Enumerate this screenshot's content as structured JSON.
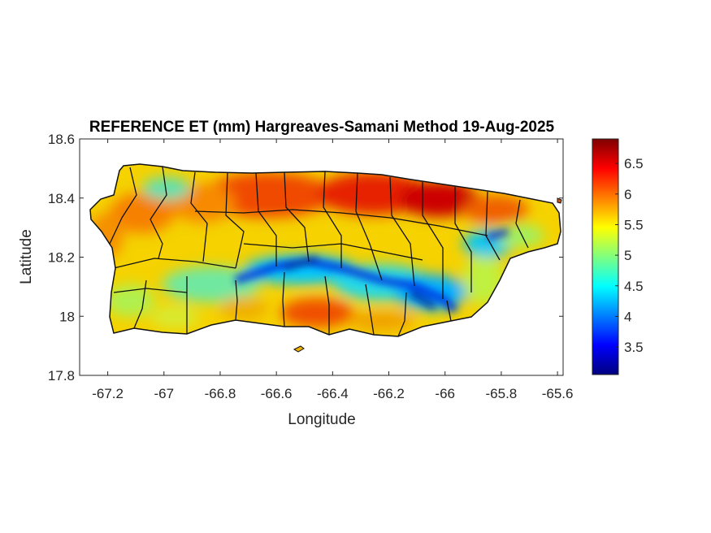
{
  "chart_data": {
    "type": "heatmap",
    "title": "REFERENCE ET (mm) Hargreaves-Samani Method  19-Aug-2025",
    "xlabel": "Longitude",
    "ylabel": "Latitude",
    "xlim": [
      -67.3,
      -65.58
    ],
    "ylim": [
      17.8,
      18.6
    ],
    "x_ticks": [
      -67.2,
      -67.0,
      -66.8,
      -66.6,
      -66.4,
      -66.2,
      -66.0,
      -65.8,
      -65.6
    ],
    "x_tick_labels": [
      "-67.2",
      "-67",
      "-66.8",
      "-66.6",
      "-66.4",
      "-66.2",
      "-66",
      "-65.8",
      "-65.6"
    ],
    "y_ticks": [
      17.8,
      18.0,
      18.2,
      18.4,
      18.6
    ],
    "y_tick_labels": [
      "17.8",
      "18",
      "18.2",
      "18.4",
      "18.6"
    ],
    "colorbar": {
      "colormap": "jet",
      "range": [
        3.05,
        6.9
      ],
      "ticks": [
        3.5,
        4.0,
        4.5,
        5.0,
        5.5,
        6.0,
        6.5
      ],
      "tick_labels": [
        "3.5",
        "4",
        "4.5",
        "5",
        "5.5",
        "6",
        "6.5"
      ]
    },
    "grid": false,
    "summary_fields": {
      "north_coast": 6.3,
      "central_mountains": 4.4,
      "south_coast": 6.0,
      "west": 5.6,
      "east": 5.3
    }
  }
}
